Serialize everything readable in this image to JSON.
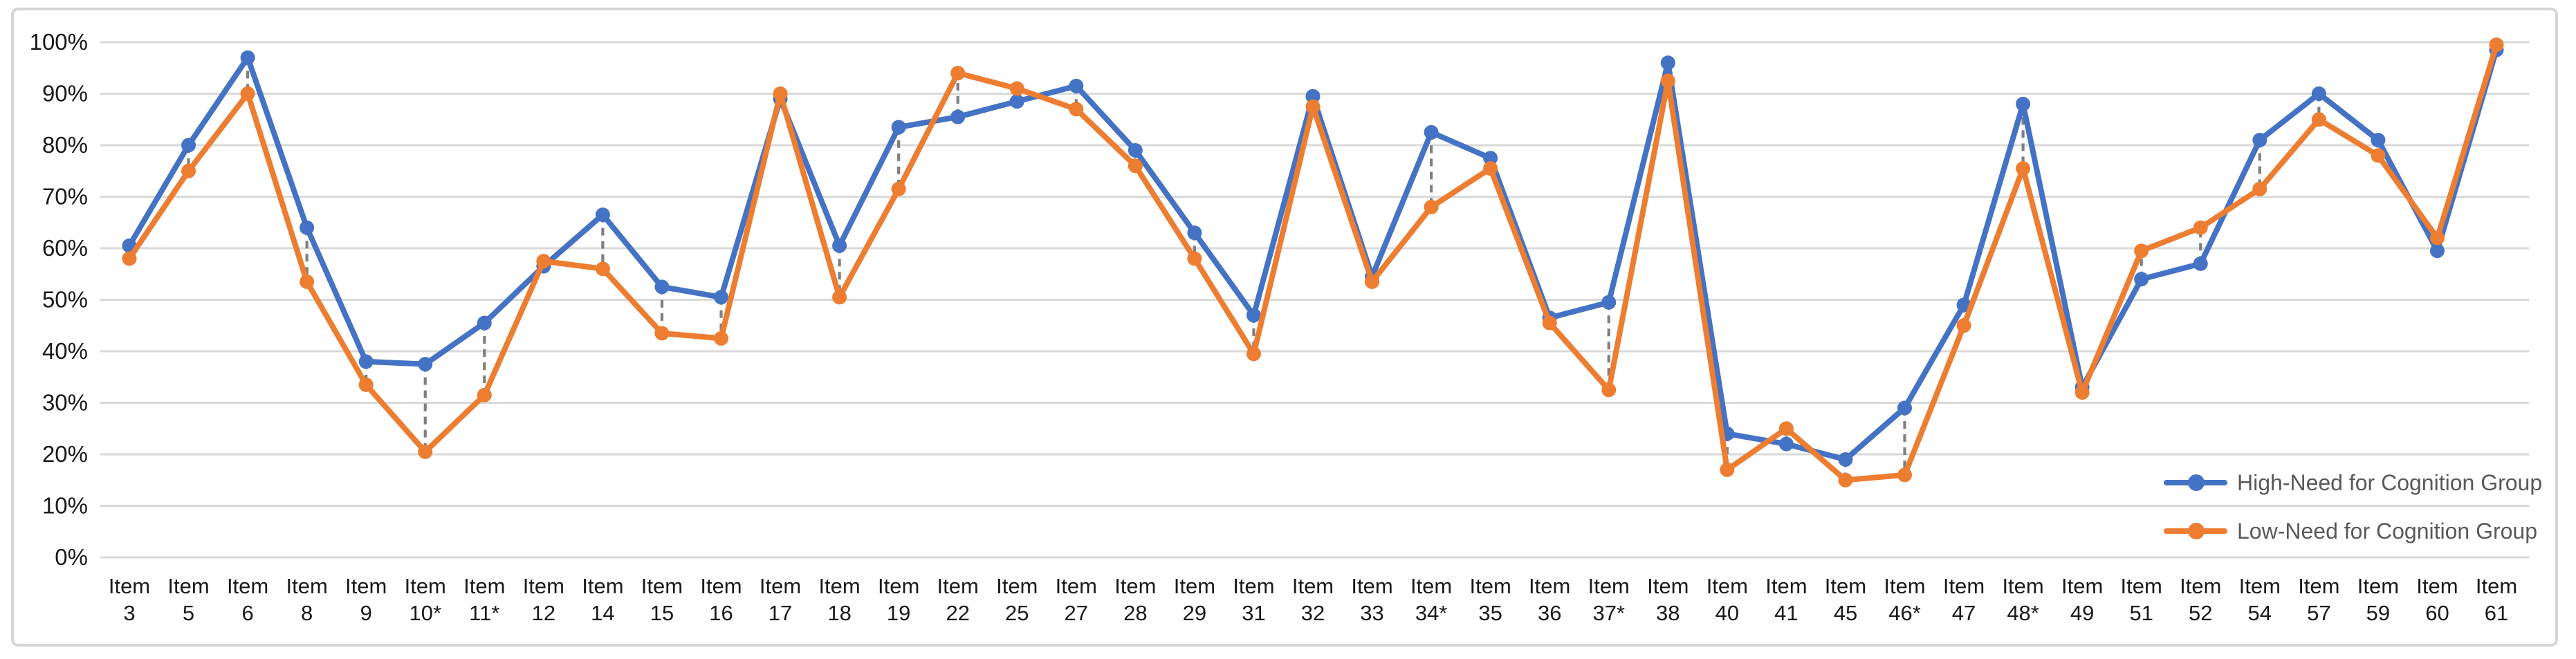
{
  "chart_data": {
    "type": "line",
    "title": "",
    "category_prefix": "Item",
    "categories": [
      "3",
      "5",
      "6",
      "8",
      "9",
      "10*",
      "11*",
      "12",
      "14",
      "15",
      "16",
      "17",
      "18",
      "19",
      "22",
      "25",
      "27",
      "28",
      "29",
      "31",
      "32",
      "33",
      "34*",
      "35",
      "36",
      "37*",
      "38",
      "40",
      "41",
      "45",
      "46*",
      "47",
      "48*",
      "49",
      "51",
      "52",
      "54",
      "57",
      "59",
      "60",
      "61"
    ],
    "series": [
      {
        "name": "High-Need for Cognition Group",
        "color": "#4472C4",
        "values": [
          60.5,
          80,
          97,
          64,
          38,
          37.5,
          45.5,
          56.5,
          66.5,
          52.5,
          50.5,
          89,
          60.5,
          83.5,
          85.5,
          88.5,
          91.5,
          79,
          63,
          47,
          89.5,
          54.5,
          82.5,
          77.5,
          46.5,
          49.5,
          96,
          24,
          22,
          19,
          29,
          49,
          88,
          33,
          54,
          57,
          81,
          90,
          81,
          59.5,
          98.5
        ]
      },
      {
        "name": "Low-Need for Cognition Group",
        "color": "#ED7D31",
        "values": [
          58,
          75,
          90,
          53.5,
          33.5,
          20.5,
          31.5,
          57.5,
          56,
          43.5,
          42.5,
          90,
          50.5,
          71.5,
          94,
          91,
          87,
          76,
          58,
          39.5,
          87.5,
          53.5,
          68,
          75.5,
          45.5,
          32.5,
          92.5,
          17,
          25,
          15,
          16,
          45,
          75.5,
          32,
          59.5,
          64,
          71.5,
          85,
          78,
          62,
          99.5
        ]
      }
    ],
    "y_ticks": [
      "0%",
      "10%",
      "20%",
      "30%",
      "40%",
      "50%",
      "60%",
      "70%",
      "80%",
      "90%",
      "100%"
    ],
    "ylim": [
      0,
      100
    ],
    "grid": true,
    "legend_position": "inside-right-lower",
    "connectors": {
      "style": "dashed",
      "color": "#7F7F7F",
      "between": "high and low series point at each category"
    }
  },
  "colors": {
    "gridline": "#D9D9D9",
    "axis_label": "#1a1a1a",
    "legend_text": "#595959",
    "connector": "#7F7F7F",
    "frame_border": "#D6D6D6",
    "background": "#FFFFFF"
  }
}
